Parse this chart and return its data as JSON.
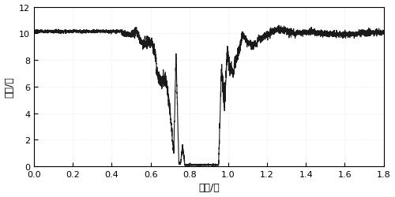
{
  "xlabel": "时间/秒",
  "ylabel": "电压/伏",
  "xlim": [
    0,
    1.8
  ],
  "ylim": [
    0,
    12
  ],
  "xticks": [
    0,
    0.2,
    0.4,
    0.6,
    0.8,
    1.0,
    1.2,
    1.4,
    1.6,
    1.8
  ],
  "yticks": [
    0,
    2,
    4,
    6,
    8,
    10,
    12
  ],
  "line_color": "#1a1a1a",
  "line_width": 0.8,
  "background_color": "#ffffff",
  "fig_background": "#ffffff",
  "dotted_bg_color": "#d8d8d8"
}
